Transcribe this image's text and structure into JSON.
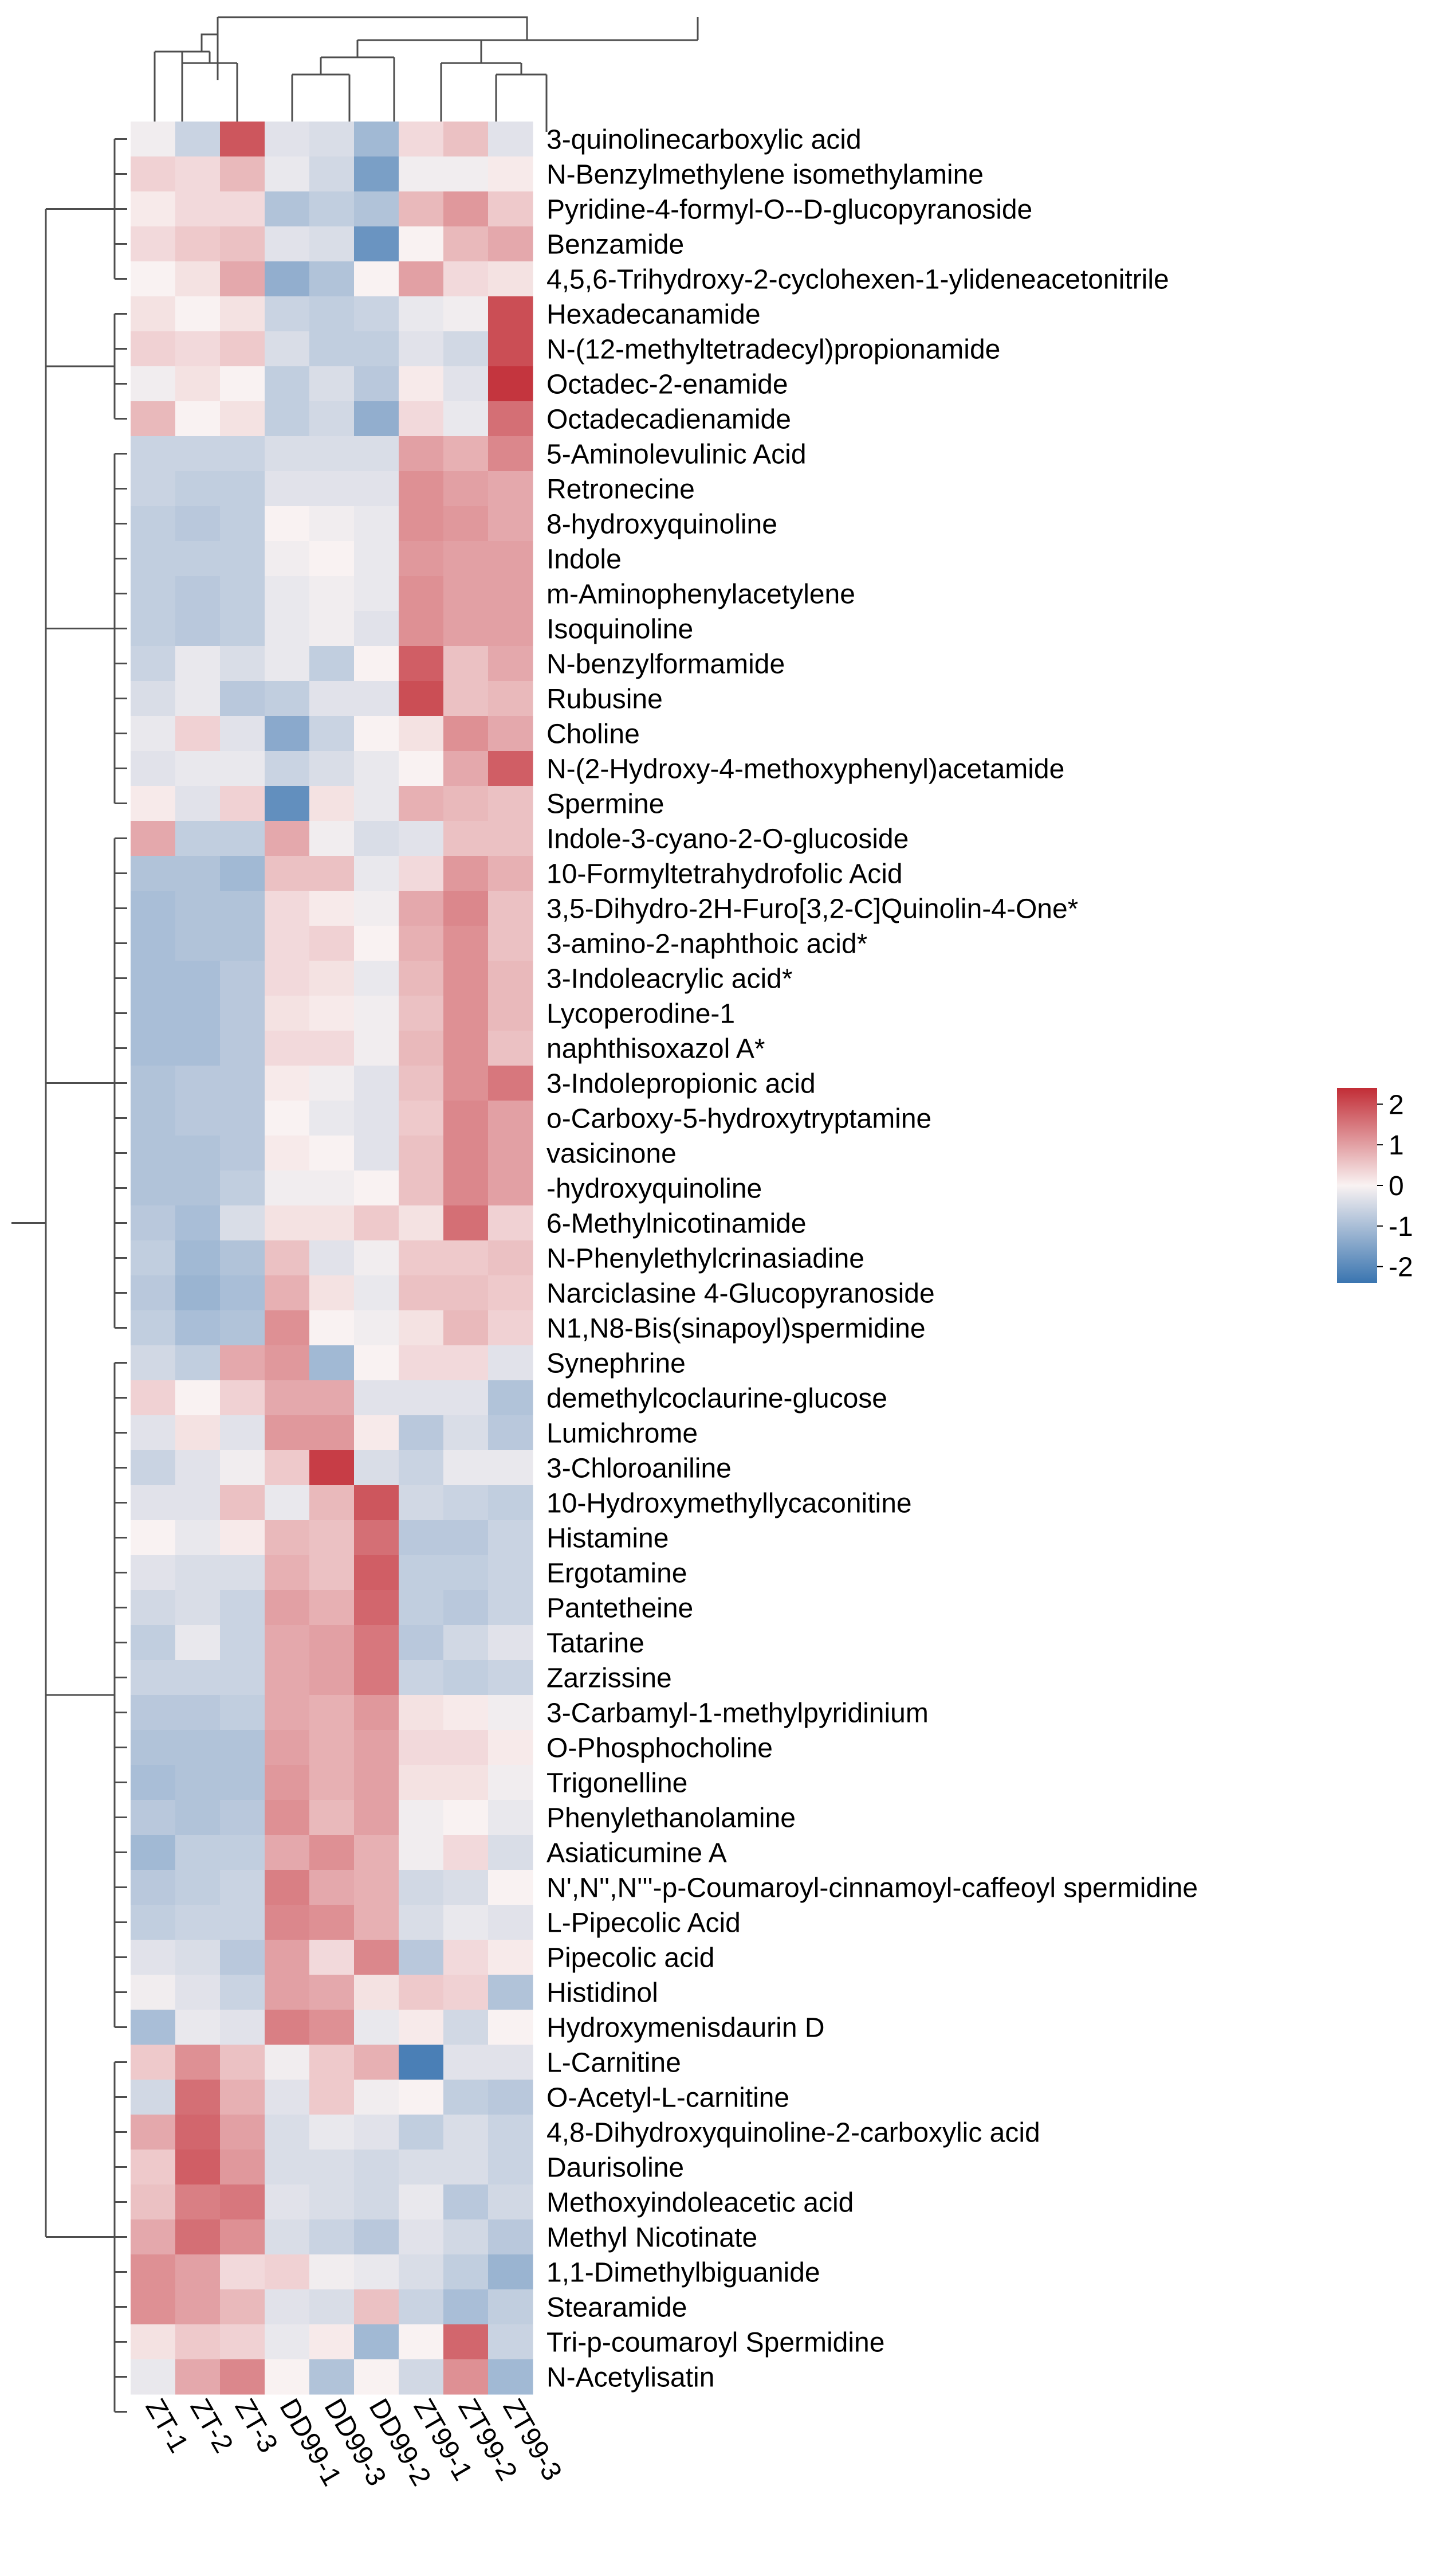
{
  "chart_data": {
    "type": "heatmap",
    "columns": [
      "ZT-1",
      "ZT-2",
      "ZT-3",
      "DD99-1",
      "DD99-3",
      "DD99-2",
      "ZT99-1",
      "ZT99-2",
      "ZT99-3"
    ],
    "rows": [
      {
        "name": "3-quinolinecarboxylic acid",
        "values": [
          -0.1,
          -0.6,
          1.9,
          -0.3,
          -0.4,
          -1.1,
          0.3,
          0.6,
          -0.3
        ]
      },
      {
        "name": "N-Benzylmethylene isomethylamine",
        "values": [
          0.4,
          0.3,
          0.7,
          -0.2,
          -0.5,
          -1.6,
          -0.1,
          -0.1,
          0.1
        ]
      },
      {
        "name": "Pyridine-4-formyl-O--D-glucopyranoside",
        "values": [
          0.1,
          0.3,
          0.3,
          -0.9,
          -0.7,
          -0.9,
          0.7,
          1.1,
          0.5
        ]
      },
      {
        "name": "Benzamide",
        "values": [
          0.3,
          0.5,
          0.6,
          -0.3,
          -0.4,
          -1.8,
          0.0,
          0.7,
          0.9
        ]
      },
      {
        "name": "4,5,6-Trihydroxy-2-cyclohexen-1-ylideneacetonitrile",
        "values": [
          0.0,
          0.2,
          0.9,
          -1.3,
          -0.9,
          0.0,
          1.0,
          0.3,
          0.2
        ]
      },
      {
        "name": "Hexadecanamide",
        "values": [
          0.2,
          0.0,
          0.2,
          -0.6,
          -0.7,
          -0.6,
          -0.2,
          -0.1,
          2.0
        ]
      },
      {
        "name": "N-(12-methyltetradecyl)propionamide",
        "values": [
          0.4,
          0.3,
          0.5,
          -0.4,
          -0.7,
          -0.7,
          -0.3,
          -0.5,
          2.0
        ]
      },
      {
        "name": "Octadec-2-enamide",
        "values": [
          -0.1,
          0.2,
          0.0,
          -0.7,
          -0.4,
          -0.8,
          0.1,
          -0.3,
          2.3
        ]
      },
      {
        "name": "Octadecadienamide",
        "values": [
          0.7,
          0.0,
          0.2,
          -0.7,
          -0.5,
          -1.3,
          0.3,
          -0.2,
          1.6
        ]
      },
      {
        "name": "5-Aminolevulinic Acid",
        "values": [
          -0.6,
          -0.6,
          -0.6,
          -0.4,
          -0.4,
          -0.4,
          1.0,
          0.8,
          1.3
        ]
      },
      {
        "name": "Retronecine",
        "values": [
          -0.6,
          -0.7,
          -0.7,
          -0.3,
          -0.3,
          -0.3,
          1.2,
          1.0,
          0.9
        ]
      },
      {
        "name": "8-hydroxyquinoline",
        "values": [
          -0.7,
          -0.8,
          -0.7,
          0.0,
          -0.1,
          -0.2,
          1.2,
          1.1,
          0.9
        ]
      },
      {
        "name": "Indole",
        "values": [
          -0.7,
          -0.7,
          -0.7,
          -0.1,
          0.0,
          -0.2,
          1.1,
          1.0,
          1.0
        ]
      },
      {
        "name": "m-Aminophenylacetylene",
        "values": [
          -0.7,
          -0.8,
          -0.7,
          -0.2,
          -0.1,
          -0.2,
          1.2,
          1.0,
          1.0
        ]
      },
      {
        "name": "Isoquinoline",
        "values": [
          -0.7,
          -0.8,
          -0.7,
          -0.2,
          -0.1,
          -0.3,
          1.2,
          1.0,
          1.0
        ]
      },
      {
        "name": "N-benzylformamide",
        "values": [
          -0.6,
          -0.2,
          -0.4,
          -0.2,
          -0.7,
          0.0,
          1.8,
          0.6,
          0.9
        ]
      },
      {
        "name": "Rubusine",
        "values": [
          -0.4,
          -0.2,
          -0.8,
          -0.7,
          -0.3,
          -0.3,
          2.0,
          0.6,
          0.7
        ]
      },
      {
        "name": "Choline",
        "values": [
          -0.2,
          0.4,
          -0.3,
          -1.4,
          -0.6,
          0.0,
          0.2,
          1.2,
          0.9
        ]
      },
      {
        "name": "N-(2-Hydroxy-4-methoxyphenyl)acetamide",
        "values": [
          -0.3,
          -0.2,
          -0.2,
          -0.6,
          -0.4,
          -0.2,
          0.0,
          0.9,
          1.8
        ]
      },
      {
        "name": "Spermine",
        "values": [
          0.1,
          -0.3,
          0.4,
          -1.9,
          0.2,
          -0.2,
          0.8,
          0.7,
          0.6
        ]
      },
      {
        "name": "Indole-3-cyano-2-O-glucoside",
        "values": [
          0.9,
          -0.7,
          -0.7,
          0.9,
          -0.1,
          -0.4,
          -0.3,
          0.6,
          0.6
        ]
      },
      {
        "name": "10-Formyltetrahydrofolic Acid",
        "values": [
          -0.9,
          -0.9,
          -1.1,
          0.6,
          0.6,
          -0.2,
          0.3,
          1.1,
          0.8
        ]
      },
      {
        "name": "3,5-Dihydro-2H-Furo[3,2-C]Quinolin-4-One*",
        "values": [
          -1.0,
          -0.9,
          -0.9,
          0.3,
          0.1,
          -0.1,
          0.9,
          1.3,
          0.6
        ]
      },
      {
        "name": "3-amino-2-naphthoic acid*",
        "values": [
          -1.0,
          -0.9,
          -0.9,
          0.3,
          0.4,
          0.0,
          0.8,
          1.2,
          0.6
        ]
      },
      {
        "name": "3-Indoleacrylic acid*",
        "values": [
          -1.0,
          -1.0,
          -0.8,
          0.3,
          0.2,
          -0.2,
          0.7,
          1.2,
          0.7
        ]
      },
      {
        "name": "Lycoperodine-1",
        "values": [
          -1.0,
          -1.0,
          -0.8,
          0.2,
          0.1,
          -0.1,
          0.6,
          1.2,
          0.7
        ]
      },
      {
        "name": "naphthisoxazol A*",
        "values": [
          -1.0,
          -1.0,
          -0.8,
          0.3,
          0.3,
          -0.1,
          0.7,
          1.2,
          0.6
        ]
      },
      {
        "name": "3-Indolepropionic acid",
        "values": [
          -0.9,
          -0.8,
          -0.8,
          0.1,
          -0.1,
          -0.3,
          0.6,
          1.2,
          1.5
        ]
      },
      {
        "name": "o-Carboxy-5-hydroxytryptamine",
        "values": [
          -0.9,
          -0.8,
          -0.8,
          0.0,
          -0.2,
          -0.3,
          0.5,
          1.3,
          1.0
        ]
      },
      {
        "name": "vasicinone",
        "values": [
          -0.9,
          -0.9,
          -0.8,
          0.1,
          0.0,
          -0.3,
          0.6,
          1.3,
          1.0
        ]
      },
      {
        "name": "-hydroxyquinoline",
        "values": [
          -0.9,
          -0.9,
          -0.7,
          -0.1,
          -0.1,
          0.0,
          0.6,
          1.3,
          1.0
        ]
      },
      {
        "name": "6-Methylnicotinamide",
        "values": [
          -0.8,
          -1.0,
          -0.4,
          0.2,
          0.2,
          0.5,
          0.2,
          1.6,
          0.4
        ]
      },
      {
        "name": "N-Phenylethylcrinasiadine",
        "values": [
          -0.7,
          -1.1,
          -0.9,
          0.6,
          -0.3,
          -0.1,
          0.5,
          0.5,
          0.6
        ]
      },
      {
        "name": "Narciclasine 4-Glucopyranoside",
        "values": [
          -0.8,
          -1.2,
          -1.0,
          0.8,
          0.2,
          -0.2,
          0.6,
          0.6,
          0.5
        ]
      },
      {
        "name": "N1,N8-Bis(sinapoyl)spermidine",
        "values": [
          -0.7,
          -1.0,
          -0.9,
          1.2,
          0.0,
          -0.1,
          0.2,
          0.7,
          0.4
        ]
      },
      {
        "name": "Synephrine",
        "values": [
          -0.5,
          -0.7,
          0.9,
          1.1,
          -1.1,
          0.0,
          0.3,
          0.3,
          -0.3
        ]
      },
      {
        "name": "demethylcoclaurine-glucose",
        "values": [
          0.4,
          0.0,
          0.4,
          0.9,
          0.9,
          -0.3,
          -0.3,
          -0.3,
          -0.9
        ]
      },
      {
        "name": "Lumichrome",
        "values": [
          -0.3,
          0.2,
          -0.3,
          1.1,
          1.1,
          0.1,
          -0.8,
          -0.4,
          -0.8
        ]
      },
      {
        "name": "3-Chloroaniline",
        "values": [
          -0.6,
          -0.3,
          -0.1,
          0.5,
          2.2,
          -0.4,
          -0.6,
          -0.2,
          -0.2
        ]
      },
      {
        "name": "10-Hydroxymethyllycaconitine",
        "values": [
          -0.3,
          -0.3,
          0.6,
          -0.2,
          0.7,
          1.9,
          -0.5,
          -0.6,
          -0.7
        ]
      },
      {
        "name": "Histamine",
        "values": [
          0.0,
          -0.2,
          0.1,
          0.7,
          0.6,
          1.6,
          -0.8,
          -0.8,
          -0.6
        ]
      },
      {
        "name": "Ergotamine",
        "values": [
          -0.3,
          -0.4,
          -0.4,
          0.8,
          0.6,
          1.8,
          -0.7,
          -0.7,
          -0.6
        ]
      },
      {
        "name": "Pantetheine",
        "values": [
          -0.5,
          -0.4,
          -0.6,
          1.0,
          0.8,
          1.7,
          -0.7,
          -0.8,
          -0.6
        ]
      },
      {
        "name": "Tatarine",
        "values": [
          -0.7,
          -0.2,
          -0.6,
          0.9,
          1.0,
          1.5,
          -0.8,
          -0.5,
          -0.3
        ]
      },
      {
        "name": "Zarzissine",
        "values": [
          -0.6,
          -0.6,
          -0.6,
          0.9,
          1.0,
          1.5,
          -0.6,
          -0.7,
          -0.6
        ]
      },
      {
        "name": "3-Carbamyl-1-methylpyridinium",
        "values": [
          -0.8,
          -0.8,
          -0.7,
          0.9,
          0.8,
          1.1,
          0.2,
          0.1,
          -0.1
        ]
      },
      {
        "name": "O-Phosphocholine",
        "values": [
          -0.9,
          -0.9,
          -0.9,
          1.0,
          0.8,
          1.0,
          0.3,
          0.3,
          0.1
        ]
      },
      {
        "name": "Trigonelline",
        "values": [
          -1.0,
          -0.9,
          -0.9,
          1.1,
          0.8,
          1.0,
          0.2,
          0.2,
          -0.1
        ]
      },
      {
        "name": "Phenylethanolamine",
        "values": [
          -0.8,
          -0.9,
          -0.8,
          1.2,
          0.7,
          1.0,
          -0.1,
          0.0,
          -0.2
        ]
      },
      {
        "name": "Asiaticumine A",
        "values": [
          -1.1,
          -0.7,
          -0.7,
          0.9,
          1.2,
          0.8,
          -0.1,
          0.3,
          -0.4
        ]
      },
      {
        "name": "N',N'',N'''-p-Coumaroyl-cinnamoyl-caffeoyl spermidine",
        "values": [
          -0.8,
          -0.7,
          -0.6,
          1.4,
          0.9,
          0.8,
          -0.5,
          -0.4,
          0.0
        ]
      },
      {
        "name": "L-Pipecolic Acid",
        "values": [
          -0.7,
          -0.6,
          -0.6,
          1.3,
          1.2,
          0.8,
          -0.4,
          -0.2,
          -0.3
        ]
      },
      {
        "name": "Pipecolic acid",
        "values": [
          -0.3,
          -0.4,
          -0.8,
          1.0,
          0.3,
          1.3,
          -0.8,
          0.3,
          0.1
        ]
      },
      {
        "name": "Histidinol",
        "values": [
          -0.1,
          -0.3,
          -0.6,
          1.0,
          0.9,
          0.2,
          0.5,
          0.4,
          -0.9
        ]
      },
      {
        "name": "Hydroxymenisdaurin D",
        "values": [
          -1.0,
          -0.2,
          -0.3,
          1.4,
          1.2,
          -0.2,
          0.1,
          -0.5,
          0.0
        ]
      },
      {
        "name": "L-Carnitine",
        "values": [
          0.5,
          1.2,
          0.6,
          -0.1,
          0.5,
          0.8,
          -2.2,
          -0.3,
          -0.3
        ]
      },
      {
        "name": "O-Acetyl-L-carnitine",
        "values": [
          -0.5,
          1.6,
          0.8,
          -0.3,
          0.5,
          -0.1,
          0.0,
          -0.7,
          -0.8
        ]
      },
      {
        "name": "4,8-Dihydroxyquinoline-2-carboxylic acid",
        "values": [
          0.9,
          1.7,
          1.0,
          -0.4,
          -0.2,
          -0.3,
          -0.7,
          -0.4,
          -0.6
        ]
      },
      {
        "name": "Daurisoline",
        "values": [
          0.5,
          1.8,
          1.1,
          -0.4,
          -0.4,
          -0.5,
          -0.4,
          -0.4,
          -0.6
        ]
      },
      {
        "name": "Methoxyindoleacetic acid",
        "values": [
          0.6,
          1.4,
          1.5,
          -0.3,
          -0.4,
          -0.5,
          -0.2,
          -0.8,
          -0.5
        ]
      },
      {
        "name": "Methyl Nicotinate",
        "values": [
          0.9,
          1.6,
          1.2,
          -0.4,
          -0.6,
          -0.8,
          -0.3,
          -0.5,
          -0.8
        ]
      },
      {
        "name": "1,1-Dimethylbiguanide",
        "values": [
          1.2,
          1.0,
          0.3,
          0.4,
          -0.1,
          -0.2,
          -0.4,
          -0.7,
          -1.2
        ]
      },
      {
        "name": "Stearamide",
        "values": [
          1.2,
          1.0,
          0.7,
          -0.3,
          -0.4,
          0.6,
          -0.6,
          -1.0,
          -0.7
        ]
      },
      {
        "name": "Tri-p-coumaroyl Spermidine",
        "values": [
          0.2,
          0.5,
          0.4,
          -0.2,
          0.1,
          -1.1,
          0.0,
          1.7,
          -0.6
        ]
      },
      {
        "name": "N-Acetylisatin",
        "values": [
          -0.2,
          0.9,
          1.3,
          0.0,
          -0.9,
          0.0,
          -0.5,
          1.2,
          -1.1
        ]
      }
    ],
    "color_scale": {
      "min": -2.4,
      "max": 2.4,
      "low_color": "#3a75b0",
      "mid_color": "#f9f2f2",
      "high_color": "#c22d36"
    },
    "legend": {
      "ticks": [
        2,
        1,
        0,
        -1,
        -2
      ],
      "tick_labels": [
        "2",
        "1",
        "0",
        "-1",
        "-2"
      ],
      "position": "right"
    },
    "column_dendrogram": "top",
    "row_dendrogram": "left"
  }
}
